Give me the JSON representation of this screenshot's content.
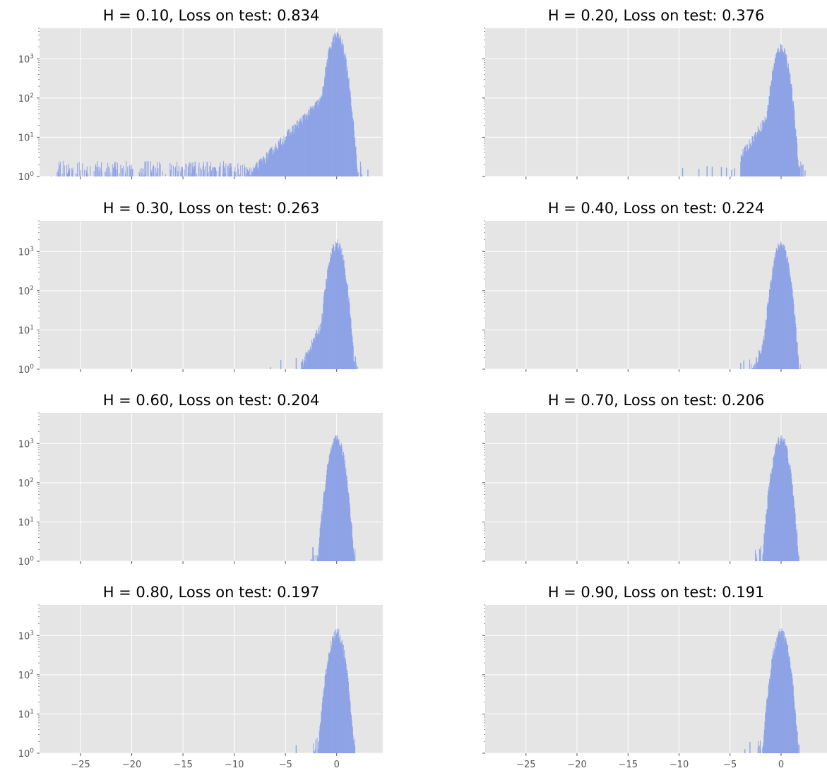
{
  "colors": {
    "panel_bg": "#e5e5e5",
    "grid": "#ffffff",
    "bar": "#8ea3e6",
    "tick_text": "#555555",
    "title_text": "#000000"
  },
  "chart_data": [
    {
      "type": "bar",
      "title": "H = 0.10, Loss on test: 0.834",
      "x_tick_labels": [],
      "y_tick_labels": [
        {
          "base": "10",
          "exp": "0"
        },
        {
          "base": "10",
          "exp": "1"
        },
        {
          "base": "10",
          "exp": "2"
        },
        {
          "base": "10",
          "exp": "3"
        }
      ],
      "xlim": [
        -29,
        4.5
      ],
      "ylim": [
        1,
        6000
      ],
      "yscale": "log",
      "grid": true,
      "x_ticks": [
        -25,
        -20,
        -15,
        -10,
        -5,
        0
      ],
      "center": 0,
      "peak": 4000,
      "sigma_left": 0.55,
      "sigma_right": 0.5,
      "tail_left": 1.6,
      "tail_right": 0.3,
      "x_min": -27.5,
      "x_max": 2.4,
      "outliers": [
        -27.9,
        -18.2,
        -17.9,
        -17.6,
        -14.1,
        -13.0,
        -12.4,
        -11.9,
        -11.5,
        -11.0,
        -10.5,
        -10.0,
        -9.5,
        -9.0,
        -8.6,
        -8.1,
        2.4,
        3.0
      ]
    },
    {
      "type": "bar",
      "title": "H = 0.20, Loss on test: 0.376",
      "x_tick_labels": [],
      "y_tick_labels": [],
      "xlim": [
        -29,
        4.5
      ],
      "ylim": [
        1,
        6000
      ],
      "yscale": "log",
      "grid": true,
      "x_ticks": [
        -25,
        -20,
        -15,
        -10,
        -5,
        0
      ],
      "center": 0,
      "peak": 2000,
      "sigma_left": 0.5,
      "sigma_right": 0.45,
      "tail_left": 1.1,
      "tail_right": 0.25,
      "x_min": -4.0,
      "x_max": 2.0,
      "outliers": [
        -9.7,
        -8.1,
        -7.3,
        -6.8,
        -6.3,
        -5.9,
        -5.4,
        -4.9,
        -4.6,
        2.1,
        2.3
      ]
    },
    {
      "type": "bar",
      "title": "H = 0.30, Loss on test: 0.263",
      "x_tick_labels": [],
      "y_tick_labels": [
        {
          "base": "10",
          "exp": "0"
        },
        {
          "base": "10",
          "exp": "1"
        },
        {
          "base": "10",
          "exp": "2"
        },
        {
          "base": "10",
          "exp": "3"
        }
      ],
      "xlim": [
        -29,
        4.5
      ],
      "ylim": [
        1,
        6000
      ],
      "yscale": "log",
      "grid": true,
      "x_ticks": [
        -25,
        -20,
        -15,
        -10,
        -5,
        0
      ],
      "center": 0,
      "peak": 1600,
      "sigma_left": 0.5,
      "sigma_right": 0.45,
      "tail_left": 0.8,
      "tail_right": 0.2,
      "x_min": -3.5,
      "x_max": 2.0,
      "outliers": [
        -6.5,
        -5.5,
        -4.0
      ]
    },
    {
      "type": "bar",
      "title": "H = 0.40, Loss on test: 0.224",
      "x_tick_labels": [],
      "y_tick_labels": [],
      "xlim": [
        -29,
        4.5
      ],
      "ylim": [
        1,
        6000
      ],
      "yscale": "log",
      "grid": true,
      "x_ticks": [
        -25,
        -20,
        -15,
        -10,
        -5,
        0
      ],
      "center": 0,
      "peak": 1600,
      "sigma_left": 0.5,
      "sigma_right": 0.45,
      "tail_left": 0.6,
      "tail_right": 0.2,
      "x_min": -3.2,
      "x_max": 1.9,
      "outliers": [
        -4.0,
        -3.7
      ]
    },
    {
      "type": "bar",
      "title": "H = 0.60, Loss on test: 0.204",
      "x_tick_labels": [],
      "y_tick_labels": [
        {
          "base": "10",
          "exp": "0"
        },
        {
          "base": "10",
          "exp": "1"
        },
        {
          "base": "10",
          "exp": "2"
        },
        {
          "base": "10",
          "exp": "3"
        }
      ],
      "xlim": [
        -29,
        4.5
      ],
      "ylim": [
        1,
        6000
      ],
      "yscale": "log",
      "grid": true,
      "x_ticks": [
        -25,
        -20,
        -15,
        -10,
        -5,
        0
      ],
      "center": 0,
      "peak": 1300,
      "sigma_left": 0.5,
      "sigma_right": 0.45,
      "tail_left": 0.3,
      "tail_right": 0.15,
      "x_min": -2.6,
      "x_max": 1.8,
      "outliers": []
    },
    {
      "type": "bar",
      "title": "H = 0.70, Loss on test: 0.206",
      "x_tick_labels": [],
      "y_tick_labels": [],
      "xlim": [
        -29,
        4.5
      ],
      "ylim": [
        1,
        6000
      ],
      "yscale": "log",
      "grid": true,
      "x_ticks": [
        -25,
        -20,
        -15,
        -10,
        -5,
        0
      ],
      "center": 0,
      "peak": 1400,
      "sigma_left": 0.5,
      "sigma_right": 0.45,
      "tail_left": 0.3,
      "tail_right": 0.15,
      "x_min": -2.6,
      "x_max": 1.9,
      "outliers": []
    },
    {
      "type": "bar",
      "title": "H = 0.80, Loss on test: 0.197",
      "x_tick_labels": [
        "−25",
        "−20",
        "−15",
        "−10",
        "−5",
        "0"
      ],
      "y_tick_labels": [
        {
          "base": "10",
          "exp": "0"
        },
        {
          "base": "10",
          "exp": "1"
        },
        {
          "base": "10",
          "exp": "2"
        },
        {
          "base": "10",
          "exp": "3"
        }
      ],
      "xlim": [
        -29,
        4.5
      ],
      "ylim": [
        1,
        6000
      ],
      "yscale": "log",
      "grid": true,
      "x_ticks": [
        -25,
        -20,
        -15,
        -10,
        -5,
        0
      ],
      "center": 0,
      "peak": 1200,
      "sigma_left": 0.5,
      "sigma_right": 0.45,
      "tail_left": 0.2,
      "tail_right": 0.15,
      "x_min": -2.3,
      "x_max": 1.8,
      "outliers": [
        -4.0
      ]
    },
    {
      "type": "bar",
      "title": "H = 0.90, Loss on test: 0.191",
      "x_tick_labels": [
        "−25",
        "−20",
        "−15",
        "−10",
        "−5",
        "0"
      ],
      "y_tick_labels": [],
      "xlim": [
        -29,
        4.5
      ],
      "ylim": [
        1,
        6000
      ],
      "yscale": "log",
      "grid": true,
      "x_ticks": [
        -25,
        -20,
        -15,
        -10,
        -5,
        0
      ],
      "center": 0,
      "peak": 1200,
      "sigma_left": 0.5,
      "sigma_right": 0.45,
      "tail_left": 0.2,
      "tail_right": 0.15,
      "x_min": -2.3,
      "x_max": 1.8,
      "outliers": [
        -3.6,
        -3.1
      ]
    }
  ]
}
